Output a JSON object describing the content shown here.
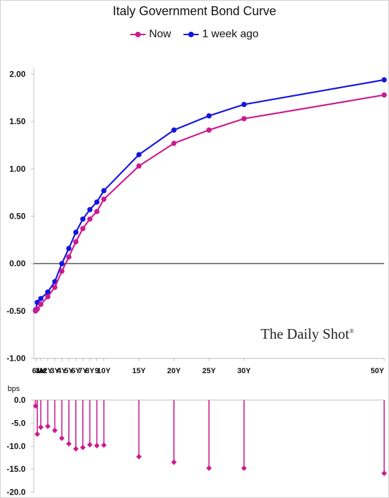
{
  "chart_data": [
    {
      "type": "line",
      "title": "Italy Government Bond Curve",
      "x": [
        "3M",
        "6M",
        "1Y",
        "2Y",
        "3Y",
        "4Y",
        "5Y",
        "6Y",
        "7Y",
        "8Y",
        "9",
        "10Y",
        "15Y",
        "20Y",
        "25Y",
        "30Y",
        "50Y"
      ],
      "x_years": [
        0.25,
        0.5,
        1,
        2,
        3,
        4,
        5,
        6,
        7,
        8,
        9,
        10,
        15,
        20,
        25,
        30,
        50
      ],
      "series": [
        {
          "name": "Now",
          "color": "#cc1a8f",
          "values": [
            -0.5,
            -0.48,
            -0.43,
            -0.35,
            -0.25,
            -0.08,
            0.07,
            0.23,
            0.37,
            0.47,
            0.55,
            0.68,
            1.03,
            1.27,
            1.41,
            1.53,
            1.78
          ]
        },
        {
          "name": "1 week ago",
          "color": "#1515e0",
          "values": [
            -0.49,
            -0.41,
            -0.37,
            -0.3,
            -0.19,
            0.0,
            0.16,
            0.33,
            0.47,
            0.57,
            0.65,
            0.77,
            1.15,
            1.41,
            1.56,
            1.68,
            1.94
          ]
        }
      ],
      "ylim": [
        -1.0,
        2.0
      ],
      "yticks": [
        "2.00",
        "1.50",
        "1.00",
        "0.50",
        "0.00",
        "-0.50",
        "-1.00"
      ],
      "legend": "top-center",
      "grid": false
    },
    {
      "type": "bar",
      "ylabel": "bps",
      "x": [
        "3M",
        "6M",
        "1Y",
        "2Y",
        "3Y",
        "4Y",
        "5Y",
        "6Y",
        "7Y",
        "8Y",
        "9",
        "10Y",
        "15Y",
        "20Y",
        "25Y",
        "30Y",
        "50Y"
      ],
      "color": "#cc1a8f",
      "values": [
        -1.3,
        -7.4,
        -5.9,
        -5.7,
        -6.6,
        -8.3,
        -9.5,
        -10.6,
        -10.3,
        -9.7,
        -9.9,
        -9.8,
        -12.3,
        -13.5,
        -14.8,
        -14.8,
        -15.9
      ],
      "ylim": [
        -20.0,
        0.0
      ],
      "yticks": [
        "0.0",
        "-5.0",
        "-10.0",
        "-15.0",
        "-20.0"
      ]
    }
  ],
  "watermark": "The Daily Shot",
  "watermark_mark": "®"
}
